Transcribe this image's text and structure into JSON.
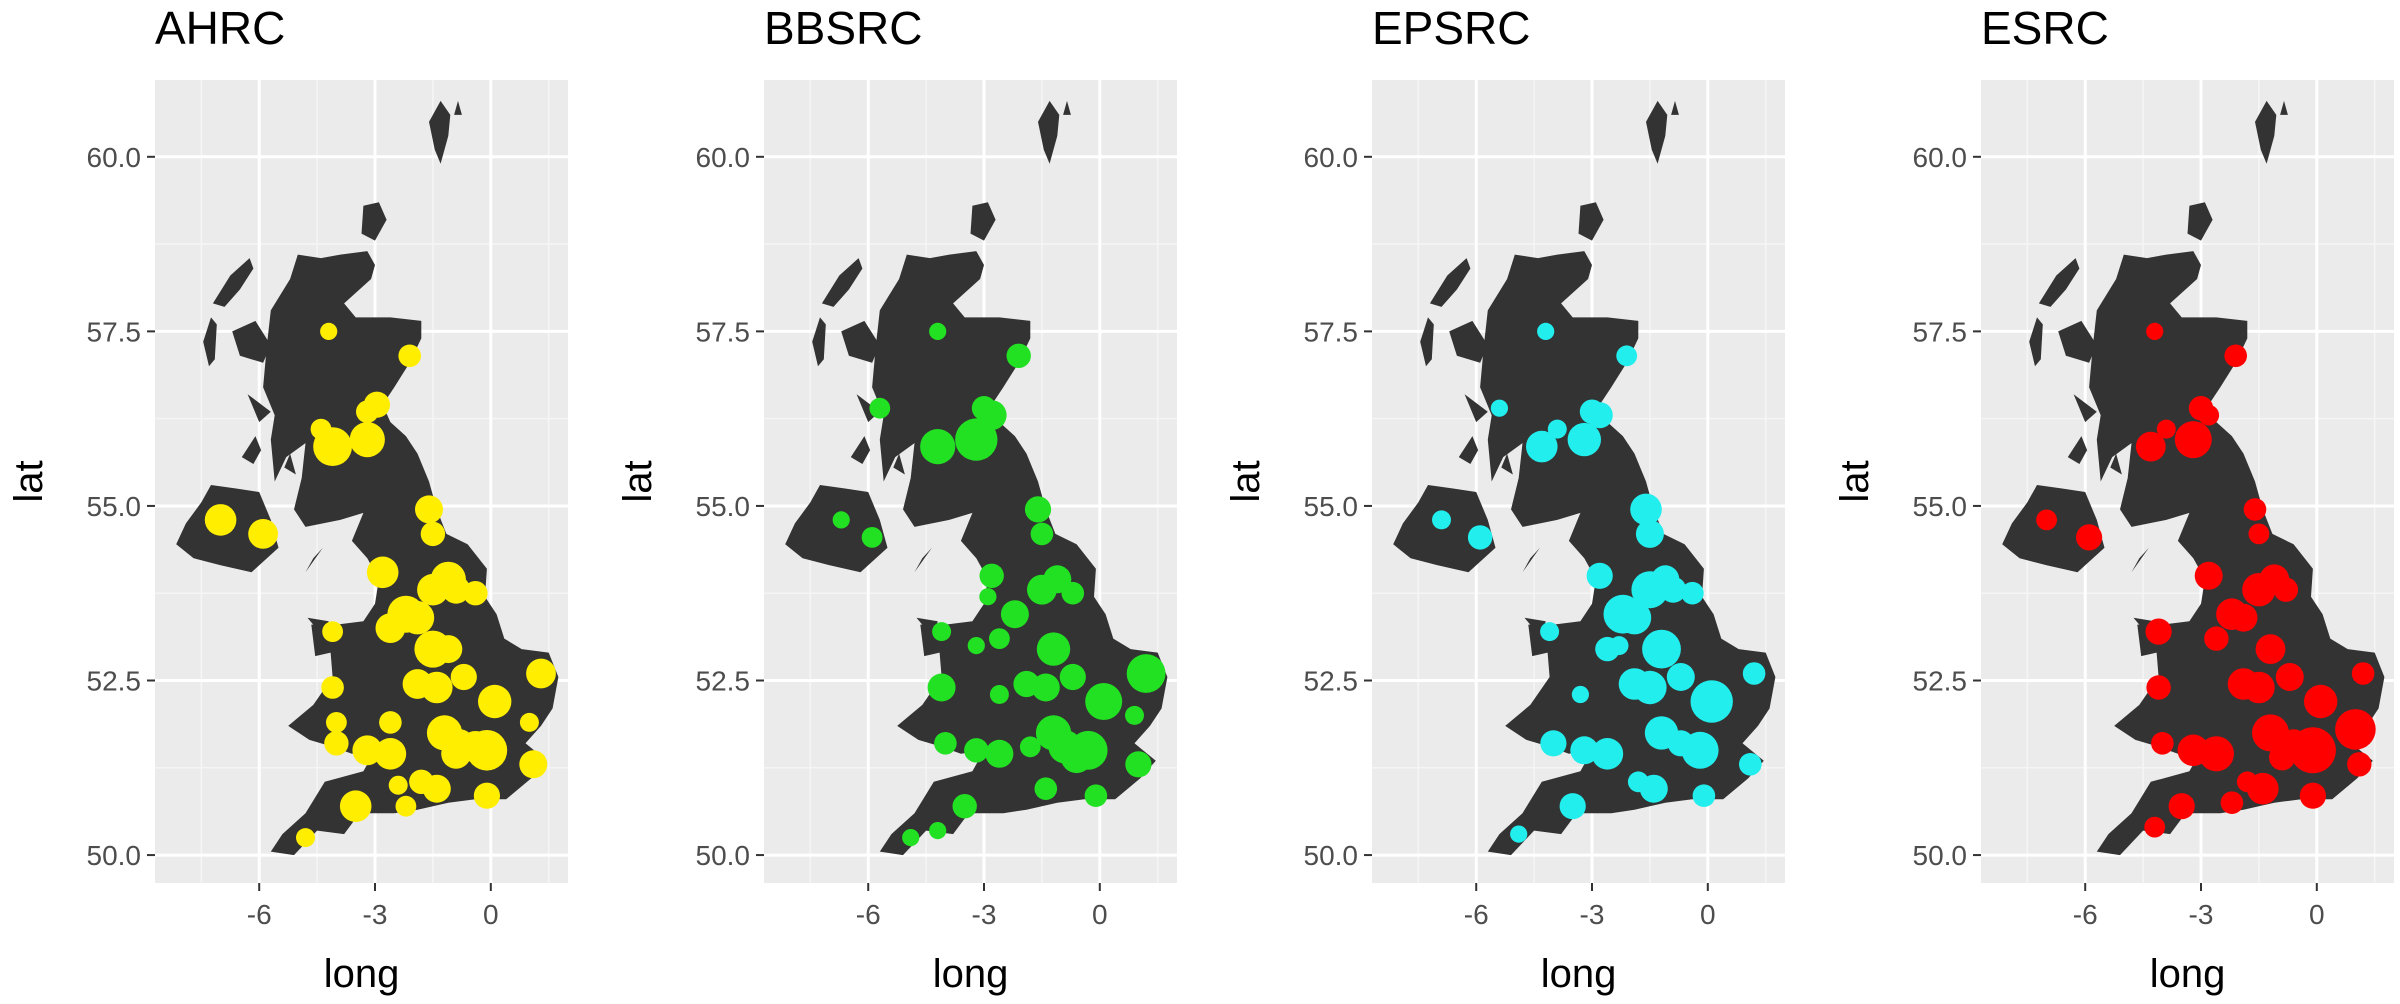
{
  "chart_data": [
    {
      "type": "scatter",
      "title": "AHRC",
      "xlabel": "long",
      "ylabel": "lat",
      "color": "#FFEE00",
      "xlim": [
        -8.7,
        2.0
      ],
      "ylim": [
        49.6,
        61.1
      ],
      "xticks": [
        {
          "value": -6,
          "label": "-6"
        },
        {
          "value": -3,
          "label": "-3"
        },
        {
          "value": 0,
          "label": "0"
        }
      ],
      "yticks": [
        {
          "value": 50,
          "label": "50.0"
        },
        {
          "value": 52.5,
          "label": "52.5"
        },
        {
          "value": 55,
          "label": "55.0"
        },
        {
          "value": 57.5,
          "label": "57.5"
        },
        {
          "value": 60,
          "label": "60.0"
        }
      ],
      "points": [
        [
          -4.2,
          57.5,
          0.4
        ],
        [
          -2.1,
          57.15,
          0.7
        ],
        [
          -2.95,
          56.45,
          0.9
        ],
        [
          -3.2,
          56.35,
          0.7
        ],
        [
          -4.4,
          56.1,
          0.6
        ],
        [
          -4.1,
          55.85,
          1.6
        ],
        [
          -3.2,
          55.95,
          1.4
        ],
        [
          -1.6,
          54.95,
          1.0
        ],
        [
          -1.5,
          54.6,
          0.8
        ],
        [
          -7.0,
          54.8,
          1.2
        ],
        [
          -5.9,
          54.6,
          1.1
        ],
        [
          -2.8,
          54.05,
          1.2
        ],
        [
          -1.1,
          53.95,
          1.4
        ],
        [
          -1.5,
          53.8,
          1.2
        ],
        [
          -2.2,
          53.45,
          1.5
        ],
        [
          -1.9,
          53.4,
          1.3
        ],
        [
          -0.9,
          53.8,
          1.0
        ],
        [
          -0.4,
          53.75,
          0.8
        ],
        [
          -2.6,
          53.25,
          1.1
        ],
        [
          -1.5,
          52.95,
          1.5
        ],
        [
          -1.1,
          52.95,
          1.0
        ],
        [
          -4.1,
          53.2,
          0.6
        ],
        [
          -1.9,
          52.45,
          1.1
        ],
        [
          -1.4,
          52.4,
          1.2
        ],
        [
          -0.7,
          52.55,
          0.9
        ],
        [
          -4.1,
          52.4,
          0.7
        ],
        [
          0.1,
          52.2,
          1.3
        ],
        [
          1.3,
          52.6,
          1.1
        ],
        [
          -4.0,
          51.9,
          0.6
        ],
        [
          -2.6,
          51.9,
          0.7
        ],
        [
          -1.2,
          51.75,
          1.4
        ],
        [
          -0.8,
          51.6,
          1.0
        ],
        [
          -0.1,
          51.5,
          1.7
        ],
        [
          -0.4,
          51.55,
          1.2
        ],
        [
          1.1,
          51.3,
          1.0
        ],
        [
          -0.9,
          51.45,
          1.1
        ],
        [
          -2.6,
          51.45,
          1.2
        ],
        [
          -3.2,
          51.5,
          1.1
        ],
        [
          -4.0,
          51.6,
          0.8
        ],
        [
          -1.8,
          51.05,
          0.8
        ],
        [
          -1.4,
          50.95,
          1.0
        ],
        [
          -0.1,
          50.85,
          0.9
        ],
        [
          -2.2,
          50.7,
          0.6
        ],
        [
          -3.5,
          50.7,
          1.2
        ],
        [
          -4.8,
          50.25,
          0.5
        ],
        [
          -2.4,
          51.0,
          0.5
        ],
        [
          1.0,
          51.9,
          0.5
        ]
      ]
    },
    {
      "type": "scatter",
      "title": "BBSRC",
      "xlabel": "long",
      "ylabel": "lat",
      "color": "#22E022",
      "xlim": [
        -8.7,
        2.0
      ],
      "ylim": [
        49.6,
        61.1
      ],
      "xticks": [
        {
          "value": -6,
          "label": "-6"
        },
        {
          "value": -3,
          "label": "-3"
        },
        {
          "value": 0,
          "label": "0"
        }
      ],
      "yticks": [
        {
          "value": 50,
          "label": "50.0"
        },
        {
          "value": 52.5,
          "label": "52.5"
        },
        {
          "value": 55,
          "label": "55.0"
        },
        {
          "value": 57.5,
          "label": "57.5"
        },
        {
          "value": 60,
          "label": "60.0"
        }
      ],
      "points": [
        [
          -4.2,
          57.5,
          0.4
        ],
        [
          -2.1,
          57.15,
          0.8
        ],
        [
          -5.7,
          56.4,
          0.6
        ],
        [
          -3.0,
          56.4,
          0.8
        ],
        [
          -2.8,
          56.3,
          1.1
        ],
        [
          -4.2,
          55.85,
          1.4
        ],
        [
          -3.2,
          55.95,
          1.8
        ],
        [
          -1.6,
          54.95,
          0.9
        ],
        [
          -1.5,
          54.6,
          0.7
        ],
        [
          -6.7,
          54.8,
          0.4
        ],
        [
          -5.9,
          54.55,
          0.6
        ],
        [
          -2.8,
          54.0,
          0.8
        ],
        [
          -1.1,
          53.95,
          1.0
        ],
        [
          -1.5,
          53.8,
          1.1
        ],
        [
          -2.2,
          53.45,
          1.0
        ],
        [
          -0.7,
          53.75,
          0.7
        ],
        [
          -2.6,
          53.1,
          0.6
        ],
        [
          -1.2,
          52.95,
          1.3
        ],
        [
          -4.1,
          53.2,
          0.5
        ],
        [
          -1.9,
          52.45,
          0.9
        ],
        [
          -1.4,
          52.4,
          1.0
        ],
        [
          -0.7,
          52.55,
          0.9
        ],
        [
          -4.1,
          52.4,
          1.0
        ],
        [
          0.1,
          52.2,
          1.5
        ],
        [
          1.2,
          52.6,
          1.6
        ],
        [
          -2.6,
          52.3,
          0.5
        ],
        [
          -1.2,
          51.75,
          1.4
        ],
        [
          -0.9,
          51.55,
          1.3
        ],
        [
          -0.3,
          51.5,
          1.6
        ],
        [
          -0.6,
          51.4,
          1.2
        ],
        [
          1.0,
          51.3,
          0.9
        ],
        [
          -1.8,
          51.55,
          0.6
        ],
        [
          -2.6,
          51.45,
          1.0
        ],
        [
          -3.2,
          51.5,
          0.8
        ],
        [
          -4.0,
          51.6,
          0.7
        ],
        [
          -1.4,
          50.95,
          0.7
        ],
        [
          -0.1,
          50.85,
          0.7
        ],
        [
          -3.5,
          50.7,
          0.8
        ],
        [
          -4.2,
          50.35,
          0.4
        ],
        [
          -4.9,
          50.25,
          0.4
        ],
        [
          -2.9,
          53.7,
          0.4
        ],
        [
          -3.2,
          53.0,
          0.4
        ],
        [
          0.9,
          52.0,
          0.5
        ]
      ]
    },
    {
      "type": "scatter",
      "title": "EPSRC",
      "xlabel": "long",
      "ylabel": "lat",
      "color": "#22EEEE",
      "xlim": [
        -8.7,
        2.0
      ],
      "ylim": [
        49.6,
        61.1
      ],
      "xticks": [
        {
          "value": -6,
          "label": "-6"
        },
        {
          "value": -3,
          "label": "-3"
        },
        {
          "value": 0,
          "label": "0"
        }
      ],
      "yticks": [
        {
          "value": 50,
          "label": "50.0"
        },
        {
          "value": 52.5,
          "label": "52.5"
        },
        {
          "value": 55,
          "label": "55.0"
        },
        {
          "value": 57.5,
          "label": "57.5"
        },
        {
          "value": 60,
          "label": "60.0"
        }
      ],
      "points": [
        [
          -4.2,
          57.5,
          0.4
        ],
        [
          -2.1,
          57.15,
          0.6
        ],
        [
          -5.4,
          56.4,
          0.4
        ],
        [
          -3.0,
          56.35,
          0.8
        ],
        [
          -2.8,
          56.3,
          0.9
        ],
        [
          -3.9,
          56.1,
          0.5
        ],
        [
          -4.3,
          55.85,
          1.2
        ],
        [
          -3.2,
          55.95,
          1.3
        ],
        [
          -1.6,
          54.95,
          1.2
        ],
        [
          -1.5,
          54.6,
          1.0
        ],
        [
          -6.9,
          54.8,
          0.5
        ],
        [
          -5.9,
          54.55,
          0.8
        ],
        [
          -2.8,
          54.0,
          0.9
        ],
        [
          -1.1,
          53.95,
          1.0
        ],
        [
          -1.5,
          53.8,
          1.5
        ],
        [
          -2.2,
          53.45,
          1.6
        ],
        [
          -1.9,
          53.4,
          1.3
        ],
        [
          -0.9,
          53.8,
          0.9
        ],
        [
          -0.4,
          53.75,
          0.7
        ],
        [
          -1.2,
          52.95,
          1.6
        ],
        [
          -2.6,
          52.95,
          0.8
        ],
        [
          -4.1,
          53.2,
          0.5
        ],
        [
          -1.9,
          52.45,
          1.2
        ],
        [
          -1.5,
          52.4,
          1.3
        ],
        [
          -0.7,
          52.55,
          1.0
        ],
        [
          0.1,
          52.2,
          1.8
        ],
        [
          1.2,
          52.6,
          0.7
        ],
        [
          -1.2,
          51.75,
          1.3
        ],
        [
          -0.7,
          51.6,
          0.9
        ],
        [
          -0.2,
          51.5,
          1.5
        ],
        [
          1.1,
          51.3,
          0.7
        ],
        [
          -2.6,
          51.45,
          1.2
        ],
        [
          -3.2,
          51.5,
          1.0
        ],
        [
          -4.0,
          51.6,
          0.9
        ],
        [
          -1.4,
          50.95,
          1.0
        ],
        [
          -0.1,
          50.85,
          0.7
        ],
        [
          -3.5,
          50.7,
          0.9
        ],
        [
          -4.9,
          50.3,
          0.4
        ],
        [
          -1.8,
          51.05,
          0.6
        ],
        [
          -2.3,
          53.0,
          0.5
        ],
        [
          -3.3,
          52.3,
          0.4
        ]
      ]
    },
    {
      "type": "scatter",
      "title": "ESRC",
      "xlabel": "long",
      "ylabel": "lat",
      "color": "#FF0000",
      "xlim": [
        -8.7,
        2.0
      ],
      "ylim": [
        49.6,
        61.1
      ],
      "xticks": [
        {
          "value": -6,
          "label": "-6"
        },
        {
          "value": -3,
          "label": "-3"
        },
        {
          "value": 0,
          "label": "0"
        }
      ],
      "yticks": [
        {
          "value": 50,
          "label": "50.0"
        },
        {
          "value": 52.5,
          "label": "52.5"
        },
        {
          "value": 55,
          "label": "55.0"
        },
        {
          "value": 57.5,
          "label": "57.5"
        },
        {
          "value": 60,
          "label": "60.0"
        }
      ],
      "points": [
        [
          -4.2,
          57.5,
          0.4
        ],
        [
          -2.1,
          57.15,
          0.7
        ],
        [
          -3.0,
          56.4,
          0.8
        ],
        [
          -2.8,
          56.3,
          0.6
        ],
        [
          -3.9,
          56.1,
          0.5
        ],
        [
          -4.3,
          55.85,
          1.1
        ],
        [
          -3.2,
          55.95,
          1.5
        ],
        [
          -1.6,
          54.95,
          0.7
        ],
        [
          -1.5,
          54.6,
          0.6
        ],
        [
          -7.0,
          54.8,
          0.6
        ],
        [
          -5.9,
          54.55,
          0.9
        ],
        [
          -2.8,
          54.0,
          1.0
        ],
        [
          -1.1,
          53.95,
          1.1
        ],
        [
          -1.5,
          53.8,
          1.3
        ],
        [
          -2.2,
          53.45,
          1.2
        ],
        [
          -1.9,
          53.4,
          1.0
        ],
        [
          -0.8,
          53.8,
          0.8
        ],
        [
          -1.2,
          52.95,
          1.1
        ],
        [
          -2.6,
          53.1,
          0.8
        ],
        [
          -4.1,
          53.2,
          0.9
        ],
        [
          -1.9,
          52.45,
          1.2
        ],
        [
          -1.5,
          52.4,
          1.2
        ],
        [
          -0.7,
          52.55,
          1.0
        ],
        [
          -4.1,
          52.4,
          0.8
        ],
        [
          0.1,
          52.2,
          1.3
        ],
        [
          1.2,
          52.6,
          0.7
        ],
        [
          -1.2,
          51.75,
          1.5
        ],
        [
          -0.6,
          51.6,
          1.0
        ],
        [
          -0.1,
          51.5,
          2.0
        ],
        [
          1.0,
          51.8,
          1.7
        ],
        [
          1.1,
          51.3,
          0.8
        ],
        [
          -2.6,
          51.45,
          1.4
        ],
        [
          -3.2,
          51.5,
          1.2
        ],
        [
          -4.0,
          51.6,
          0.7
        ],
        [
          -1.4,
          50.95,
          1.2
        ],
        [
          -0.1,
          50.85,
          0.9
        ],
        [
          -3.5,
          50.7,
          0.9
        ],
        [
          -4.2,
          50.4,
          0.6
        ],
        [
          -2.2,
          50.75,
          0.7
        ],
        [
          -0.9,
          51.4,
          0.9
        ],
        [
          -1.8,
          51.05,
          0.6
        ]
      ]
    }
  ]
}
